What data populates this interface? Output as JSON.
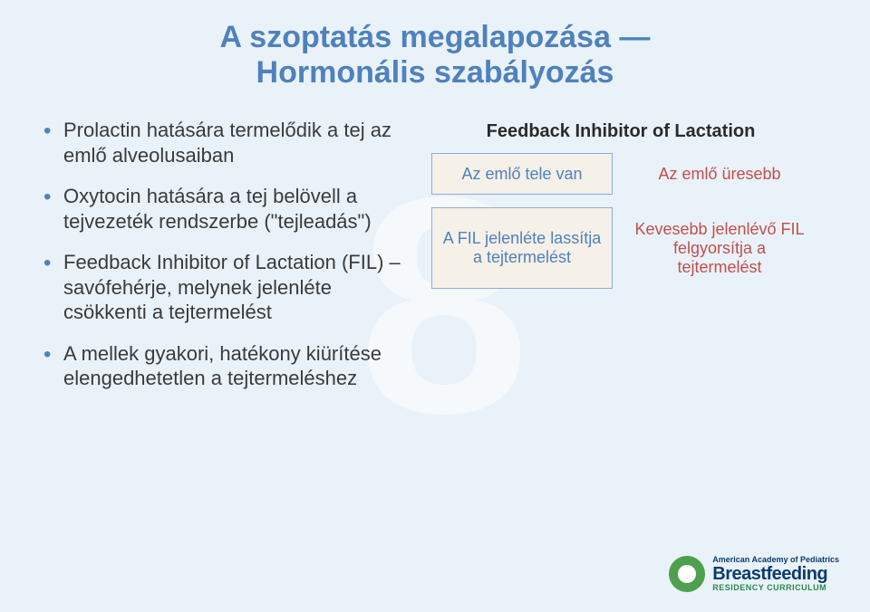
{
  "watermark": "8",
  "title_line1": "A szoptatás megalapozása —",
  "title_line2": "Hormonális szabályozás",
  "bullets": [
    "Prolactin hatására termelődik a tej az emlő alveolusaiban",
    "Oxytocin hatására a tej belövell a tejvezeték rendszerbe (\"tejleadás\")",
    "Feedback Inhibitor of Lactation (FIL) – savófehérje, melynek jelenléte csökkenti a tejtermelést",
    "A mellek gyakori, hatékony kiürítése elengedhetetlen a tejtermeléshez"
  ],
  "fil": {
    "heading": "Feedback Inhibitor of Lactation",
    "leftTop": "Az emlő tele van",
    "rightTop": "Az emlő üresebb",
    "leftBottom": "A FIL jelenléte lassítja a tejtermelést",
    "rightBottom": "Kevesebb jelenlévő FIL felgyorsítja a tejtermelést"
  },
  "logo": {
    "aap": "American Academy of Pediatrics",
    "bf": "Breastfeeding",
    "rc": "RESIDENCY CURRICULUM"
  },
  "colors": {
    "accent": "#4f81bd",
    "red": "#c0504d",
    "bg": "#eaf2f9",
    "boxBg": "#f5f1e8",
    "boxBorder": "#8faadc"
  }
}
